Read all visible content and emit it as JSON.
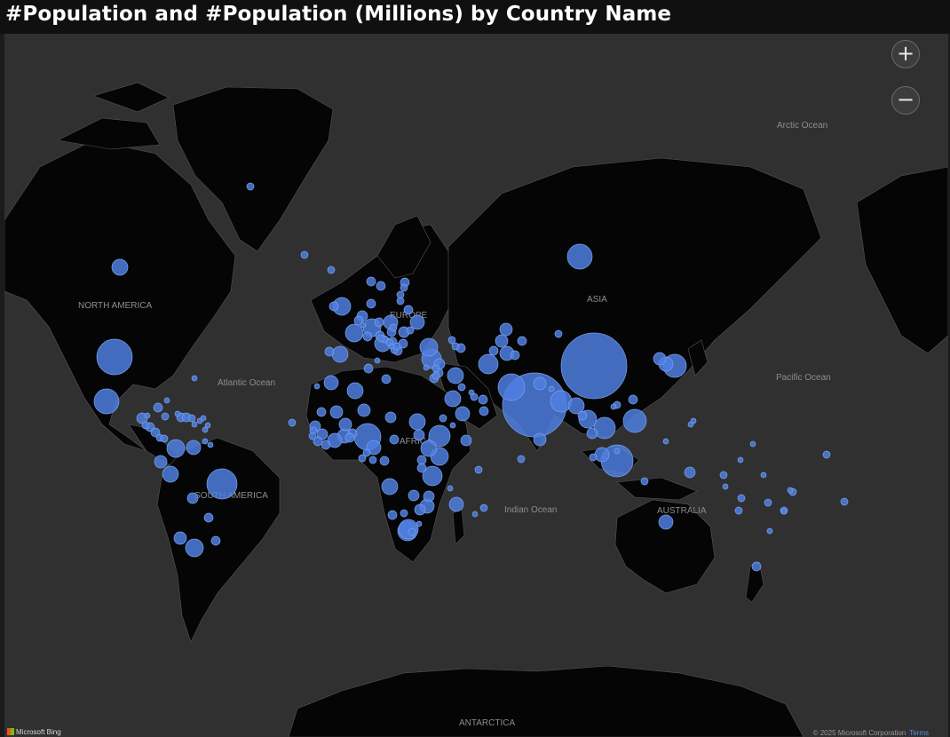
{
  "title": "#Population and #Population (Millions) by Country Name",
  "map": {
    "labels": {
      "arctic_ocean": "Arctic Ocean",
      "north_america": "NORTH AMERICA",
      "atlantic_ocean": "Atlantic Ocean",
      "europe": "EUROPE",
      "asia": "ASIA",
      "pacific_ocean": "Pacific Ocean",
      "africa": "AFRICA",
      "south_america": "SOUTH AMERICA",
      "indian_ocean": "Indian Ocean",
      "australia": "AUSTRALIA",
      "antarctica": "ANTARCTICA"
    },
    "zoom_in_icon": "plus-icon",
    "zoom_out_icon": "minus-icon",
    "bubble_color": "#4f7fe0",
    "land_color": "#050505",
    "water_color": "#303030"
  },
  "footer": {
    "provider": "Microsoft Bing",
    "copyright": "© 2025 Microsoft Corporation",
    "terms": "Terms"
  }
}
